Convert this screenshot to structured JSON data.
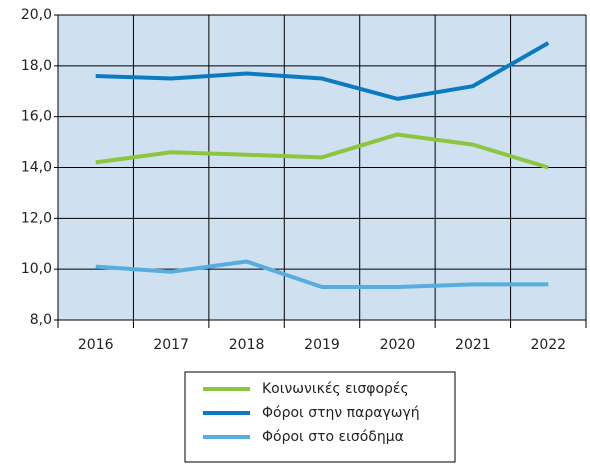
{
  "chart_data": {
    "type": "line",
    "categories": [
      "2016",
      "2017",
      "2018",
      "2019",
      "2020",
      "2021",
      "2022"
    ],
    "series": [
      {
        "name": "Κοινωνικές εισφορές",
        "color": "#8cc63f",
        "values": [
          14.2,
          14.6,
          14.5,
          14.4,
          15.3,
          14.9,
          14.0
        ]
      },
      {
        "name": "Φόροι στην παραγωγή",
        "color": "#0b7bc1",
        "values": [
          17.6,
          17.5,
          17.7,
          17.5,
          16.7,
          17.2,
          18.9
        ]
      },
      {
        "name": "Φόροι στο εισόδημα",
        "color": "#58addf",
        "values": [
          10.1,
          9.9,
          10.3,
          9.3,
          9.3,
          9.4,
          9.4
        ]
      }
    ],
    "ylim": [
      8,
      20
    ],
    "yticks": [
      {
        "value": 8,
        "label": "8,0"
      },
      {
        "value": 10,
        "label": "10,0"
      },
      {
        "value": 12,
        "label": "12,0"
      },
      {
        "value": 14,
        "label": "14,0"
      },
      {
        "value": 16,
        "label": "16,0"
      },
      {
        "value": 18,
        "label": "18,0"
      },
      {
        "value": 20,
        "label": "20,0"
      }
    ],
    "grid": true
  }
}
